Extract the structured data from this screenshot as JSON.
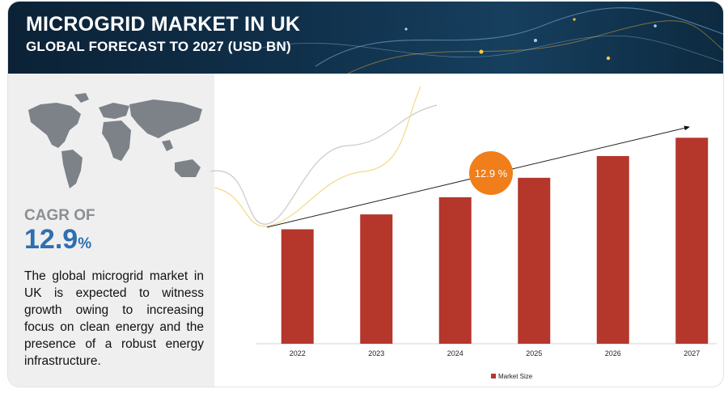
{
  "header": {
    "title": "MICROGRID MARKET IN UK",
    "subtitle": "GLOBAL FORECAST TO 2027 (USD BN)"
  },
  "left_panel": {
    "cagr_label": "CAGR OF",
    "cagr_value": "12.9",
    "cagr_unit": "%",
    "description": "The global microgrid market in UK is expected to witness growth owing to increasing focus on clean energy and the presence of a robust energy infrastructure."
  },
  "colors": {
    "bar": "#b5362b",
    "cagr_badge": "#f07e1a",
    "cagr_text": "#2e6fb0",
    "banner": "#10304a"
  },
  "chart_data": {
    "type": "bar",
    "title": "MICROGRID MARKET IN UK",
    "categories": [
      "2022",
      "2023",
      "2024",
      "2025",
      "2026",
      "2027"
    ],
    "series": [
      {
        "name": "Market Size",
        "values": [
          1.0,
          1.13,
          1.28,
          1.45,
          1.64,
          1.8
        ]
      }
    ],
    "ylim": [
      0,
      2.0
    ],
    "value_labels_shown": false,
    "cagr_annotation": "12.9 %",
    "legend": "bottom-center",
    "grid": false
  }
}
